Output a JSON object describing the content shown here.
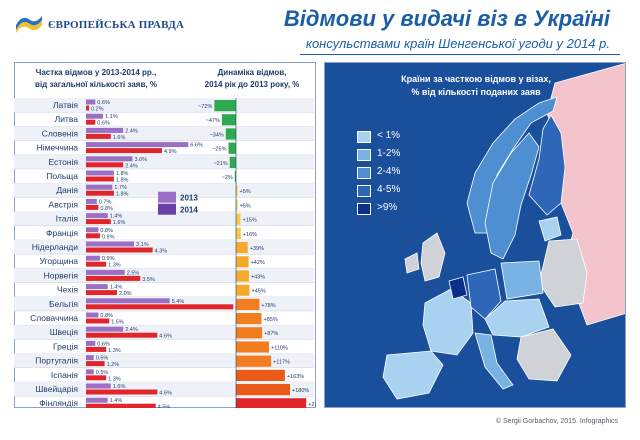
{
  "header": {
    "logo_text": "ЄВРОПЕЙСЬКА ПРАВДА",
    "title": "Відмови у видачі віз в Україні",
    "subtitle": "консульствами країн Шенгенської угоди у 2014 р."
  },
  "left_panel": {
    "share_heading_line1": "Частка відмов у 2013-2014 рр.,",
    "share_heading_line2": "від загальної кількості заяв, %",
    "dynamics_heading_line1": "Динаміка відмов,",
    "dynamics_heading_line2": "2014 рік до 2013 року, %"
  },
  "chart_data": {
    "type": "bar",
    "categories": [
      "Латвія",
      "Литва",
      "Словенія",
      "Німеччина",
      "Естонія",
      "Польща",
      "Данія",
      "Австрія",
      "Італія",
      "Франція",
      "Нідерланди",
      "Угорщина",
      "Норвегія",
      "Чехія",
      "Бельгія",
      "Словаччина",
      "Швеція",
      "Греція",
      "Португалія",
      "Іспанія",
      "Швейцарія",
      "Фінляндія"
    ],
    "series": [
      {
        "name": "2013",
        "values": [
          0.6,
          1.1,
          2.4,
          6.6,
          3.0,
          1.8,
          1.7,
          0.7,
          1.4,
          0.8,
          3.1,
          0.9,
          2.5,
          1.4,
          5.4,
          0.8,
          2.4,
          0.6,
          0.5,
          0.5,
          1.6,
          1.4
        ]
      },
      {
        "name": "2014",
        "values": [
          0.2,
          0.6,
          1.6,
          4.9,
          2.4,
          1.8,
          1.8,
          0.8,
          1.6,
          0.9,
          4.3,
          1.3,
          3.5,
          2.0,
          9.5,
          1.5,
          4.6,
          1.3,
          1.2,
          1.3,
          4.6,
          4.5
        ]
      }
    ],
    "value_labels_2013": [
      "0.6%",
      "1.1%",
      "2.4%",
      "6.6%",
      "3.0%",
      "1.8%",
      "1.7%",
      "0.7%",
      "1.4%",
      "0.8%",
      "3.1%",
      "0.9%",
      "2.5%",
      "1.4%",
      "5.4%",
      "0.8%",
      "2.4%",
      "0.6%",
      "0.5%",
      "0.5%",
      "1.6%",
      "1.4%"
    ],
    "value_labels_2014": [
      "0.2%",
      "0.6%",
      "1.6%",
      "4.9%",
      "2.4%",
      "1.8%",
      "1.8%",
      "0.8%",
      "1.6%",
      "0.9%",
      "4.3%",
      "1.3%",
      "3.5%",
      "2.0%",
      "9.5%",
      "1.5%",
      "4.6%",
      "1.3%",
      "1.2%",
      "1.3%",
      "4.6%",
      "4.5%"
    ],
    "dynamics": [
      -72,
      -47,
      -34,
      -25,
      -21,
      -2,
      5,
      5,
      15,
      16,
      39,
      42,
      43,
      45,
      78,
      85,
      87,
      110,
      117,
      163,
      180,
      234
    ],
    "dynamics_labels": [
      "~72%",
      "~47%",
      "~34%",
      "~25%",
      "~21%",
      "~2%",
      "+5%",
      "+5%",
      "+15%",
      "+16%",
      "+39%",
      "+42%",
      "+43%",
      "+45%",
      "+78%",
      "+85%",
      "+87%",
      "+110%",
      "+117%",
      "+163%",
      "+180%",
      "+234%"
    ],
    "legend": [
      "2013",
      "2014"
    ],
    "colors": {
      "series_2013": "#9b6fc4",
      "series_2014": "#e0262b",
      "negative": "#2fa84f"
    }
  },
  "map": {
    "heading_line1": "Країни за часткою відмов у візах,",
    "heading_line2": "% від кількості поданих заяв",
    "legend": [
      {
        "label": "< 1%",
        "color": "#a9d2f0"
      },
      {
        "label": "1-2%",
        "color": "#78b3e3"
      },
      {
        "label": "2-4%",
        "color": "#4d8fd1"
      },
      {
        "label": "4-5%",
        "color": "#2e66b8"
      },
      {
        "label": ">9%",
        "color": "#0d2f8c"
      }
    ],
    "background_colors": {
      "sea": "#1a4f9c",
      "non_schengen": "#cfd2d6",
      "russia": "#f3c4cc"
    }
  },
  "footer": {
    "credit": "© Sergii Gorbachov, 2015. Infographics"
  }
}
